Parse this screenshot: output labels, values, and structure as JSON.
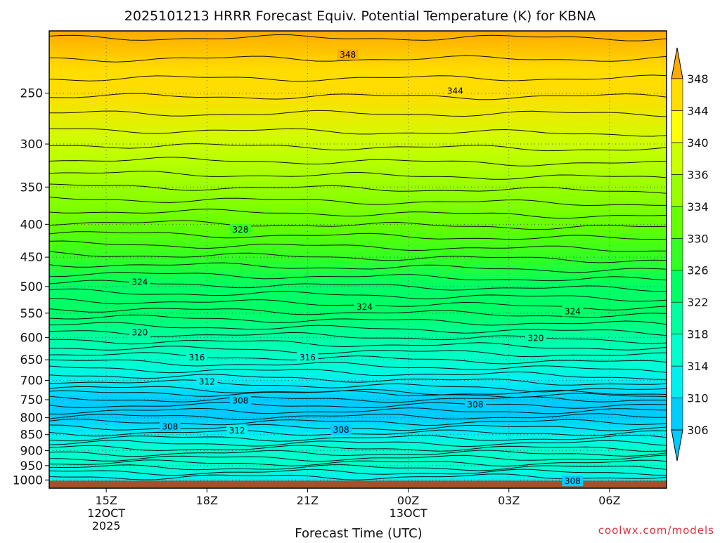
{
  "chart_data": {
    "type": "heatmap",
    "title": "2025101213 HRRR Forecast Equiv. Potential Temperature (K) for KBNA",
    "xlabel": "Forecast Time (UTC)",
    "ylabel": "",
    "credit": "coolwx.com/models",
    "x_range_hours": [
      -1.7,
      16.7
    ],
    "y_range_hpa": [
      200,
      1030
    ],
    "y_ticks": [
      {
        "value": 250,
        "label": "250"
      },
      {
        "value": 300,
        "label": "300"
      },
      {
        "value": 350,
        "label": "350"
      },
      {
        "value": 400,
        "label": "400"
      },
      {
        "value": 450,
        "label": "450"
      },
      {
        "value": 500,
        "label": "500"
      },
      {
        "value": 550,
        "label": "550"
      },
      {
        "value": 600,
        "label": "600"
      },
      {
        "value": 650,
        "label": "650"
      },
      {
        "value": 700,
        "label": "700"
      },
      {
        "value": 750,
        "label": "750"
      },
      {
        "value": 800,
        "label": "800"
      },
      {
        "value": 850,
        "label": "850"
      },
      {
        "value": 900,
        "label": "900"
      },
      {
        "value": 950,
        "label": "950"
      },
      {
        "value": 1000,
        "label": "1000"
      }
    ],
    "x_ticks": [
      {
        "value": 0,
        "label": "15Z",
        "date_label": "12OCT",
        "year_label": "2025"
      },
      {
        "value": 3,
        "label": "18Z"
      },
      {
        "value": 6,
        "label": "21Z"
      },
      {
        "value": 9,
        "label": "00Z",
        "date_label": "13OCT"
      },
      {
        "value": 12,
        "label": "03Z"
      },
      {
        "value": 15,
        "label": "06Z"
      }
    ],
    "colorbar": {
      "levels": [
        306,
        310,
        314,
        318,
        322,
        326,
        330,
        334,
        336,
        340,
        344,
        348
      ],
      "labels": [
        "306",
        "310",
        "314",
        "318",
        "322",
        "326",
        "330",
        "334",
        "336",
        "340",
        "344",
        "348"
      ],
      "colors": [
        "#00ccff",
        "#00f0f0",
        "#00ffcc",
        "#00ffa0",
        "#00ff66",
        "#33ff22",
        "#66ff00",
        "#99ff00",
        "#ccff00",
        "#ffff00",
        "#ffdd00",
        "#ffaa00"
      ]
    },
    "ground_color": "#a0522d",
    "profile": [
      {
        "p": 200,
        "theta": 349
      },
      {
        "p": 230,
        "theta": 347
      },
      {
        "p": 250,
        "theta": 344
      },
      {
        "p": 300,
        "theta": 339
      },
      {
        "p": 350,
        "theta": 335
      },
      {
        "p": 400,
        "theta": 330
      },
      {
        "p": 450,
        "theta": 327
      },
      {
        "p": 500,
        "theta": 325
      },
      {
        "p": 550,
        "theta": 323
      },
      {
        "p": 600,
        "theta": 320
      },
      {
        "p": 650,
        "theta": 317
      },
      {
        "p": 700,
        "theta": 313
      },
      {
        "p": 750,
        "theta": 309
      },
      {
        "p": 780,
        "theta": 308
      },
      {
        "p": 800,
        "theta": 308
      },
      {
        "p": 850,
        "theta": 312
      },
      {
        "p": 900,
        "theta": 314
      },
      {
        "p": 950,
        "theta": 314
      },
      {
        "p": 1000,
        "theta": 313
      }
    ],
    "contour_labels": [
      {
        "value": "348",
        "x": 7.2,
        "p": 218
      },
      {
        "value": "344",
        "x": 10.4,
        "p": 248
      },
      {
        "value": "328",
        "x": 4.0,
        "p": 408
      },
      {
        "value": "324",
        "x": 1.0,
        "p": 492
      },
      {
        "value": "324",
        "x": 7.7,
        "p": 538
      },
      {
        "value": "324",
        "x": 13.9,
        "p": 547
      },
      {
        "value": "320",
        "x": 1.0,
        "p": 590
      },
      {
        "value": "320",
        "x": 12.8,
        "p": 602
      },
      {
        "value": "316",
        "x": 6.0,
        "p": 645
      },
      {
        "value": "316",
        "x": 2.7,
        "p": 645
      },
      {
        "value": "312",
        "x": 3.0,
        "p": 703
      },
      {
        "value": "308",
        "x": 4.0,
        "p": 753
      },
      {
        "value": "308",
        "x": 11.0,
        "p": 763
      },
      {
        "value": "308",
        "x": 1.9,
        "p": 826
      },
      {
        "value": "312",
        "x": 3.9,
        "p": 838
      },
      {
        "value": "308",
        "x": 7.0,
        "p": 836
      },
      {
        "value": "308",
        "x": 13.9,
        "p": 1005
      }
    ]
  }
}
